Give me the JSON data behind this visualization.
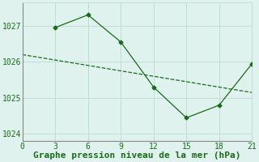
{
  "x_main": [
    3,
    6,
    9,
    12,
    15,
    18,
    21
  ],
  "y_main": [
    1026.95,
    1027.3,
    1026.55,
    1025.3,
    1024.45,
    1024.8,
    1025.95
  ],
  "x_dash": [
    0,
    3,
    6,
    9,
    12,
    15,
    18,
    21
  ],
  "y_dash": [
    1026.2,
    1026.05,
    1025.9,
    1025.75,
    1025.6,
    1025.45,
    1025.3,
    1025.15
  ],
  "color": "#1a6b1a",
  "bg_color": "#dff2ee",
  "grid_color": "#c0ddd8",
  "xlabel": "Graphe pression niveau de la mer (hPa)",
  "xlim": [
    0,
    21
  ],
  "ylim": [
    1023.8,
    1027.65
  ],
  "xticks": [
    0,
    3,
    6,
    9,
    12,
    15,
    18,
    21
  ],
  "yticks": [
    1024,
    1025,
    1026,
    1027
  ],
  "xlabel_fontsize": 8,
  "tick_fontsize": 7
}
